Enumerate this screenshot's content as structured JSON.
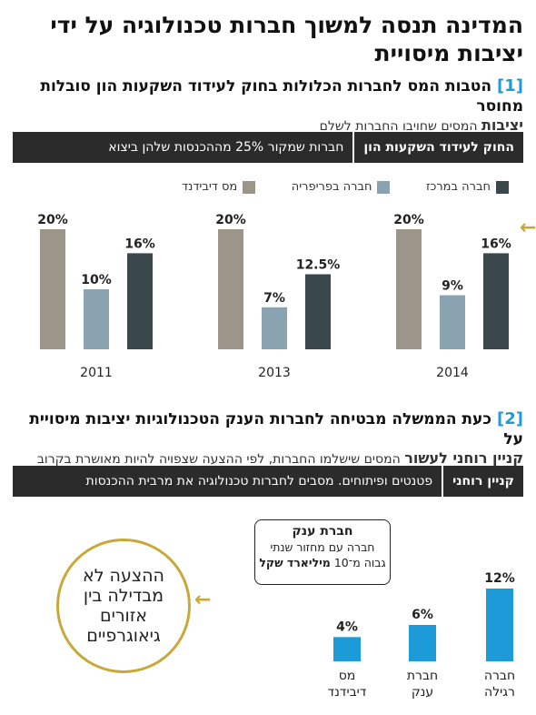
{
  "title": "המדינה תנסה למשוך חברות טכנולוגיה על ידי יציבות מיסויית",
  "section1": {
    "num": "[1]",
    "title": "הטבות המס לחברות הכלולות בחוק לעידוד השקעות הון סובלות מחוסר",
    "title_bold_end": "יציבות",
    "sub": "המסים שחויבו החברות לשלם",
    "band_label": "החוק לעידוד השקעות הון",
    "band_text": "חברות שמקור 25% מההכנסות שלהן ביצוא"
  },
  "section2": {
    "num": "[2]",
    "title": "כעת הממשלה מבטיחה לחברות הענק הטכנולוגיות יציבות מיסויית על",
    "sub_bold": "קניין רוחני לעשור",
    "sub": "המסים שישלמו החברות, לפי ההצעה שצפויה להיות מאושרת בקרוב",
    "band_label": "קניין רוחני",
    "band_text": "פטנטים ופיתוחים. מסבים לחברות טכנולוגיה את מרבית ההכנסות"
  },
  "callout": {
    "title": "חברת ענק",
    "line1": "חברה עם מחזור שנתי",
    "line2_pre": "גבוה מ־10",
    "line2_bold": "מיליארד שקל"
  },
  "circle_text": "ההצעה לא מבדילה בין אזורים גיאוגרפיים",
  "colors": {
    "center": "#3a474b",
    "periphery": "#8aa3b0",
    "dividend": "#9b958a",
    "blue": "#1c9bd8",
    "gold": "#c7a93a"
  },
  "chart_data": [
    {
      "type": "bar",
      "legend": [
        "חברה במרכז",
        "חברה בפריפריה",
        "מס דיבידנד"
      ],
      "categories": [
        "2014",
        "2013",
        "2011"
      ],
      "series": [
        {
          "name": "חברה במרכז",
          "values": [
            16,
            12.5,
            16
          ],
          "labels": [
            "16%",
            "12.5%",
            "16%"
          ]
        },
        {
          "name": "חברה בפריפריה",
          "values": [
            9,
            7,
            10
          ],
          "labels": [
            "9%",
            "7%",
            "10%"
          ]
        },
        {
          "name": "מס דיבידנד",
          "values": [
            20,
            20,
            20
          ],
          "labels": [
            "20%",
            "20%",
            "20%"
          ]
        }
      ],
      "ylim": [
        0,
        20
      ]
    },
    {
      "type": "bar",
      "categories": [
        "חברה רגילה",
        "חברת ענק",
        "מס דיבידנד"
      ],
      "values": [
        12,
        6,
        4
      ],
      "labels": [
        "12%",
        "6%",
        "4%"
      ],
      "ylim": [
        0,
        12
      ]
    }
  ]
}
